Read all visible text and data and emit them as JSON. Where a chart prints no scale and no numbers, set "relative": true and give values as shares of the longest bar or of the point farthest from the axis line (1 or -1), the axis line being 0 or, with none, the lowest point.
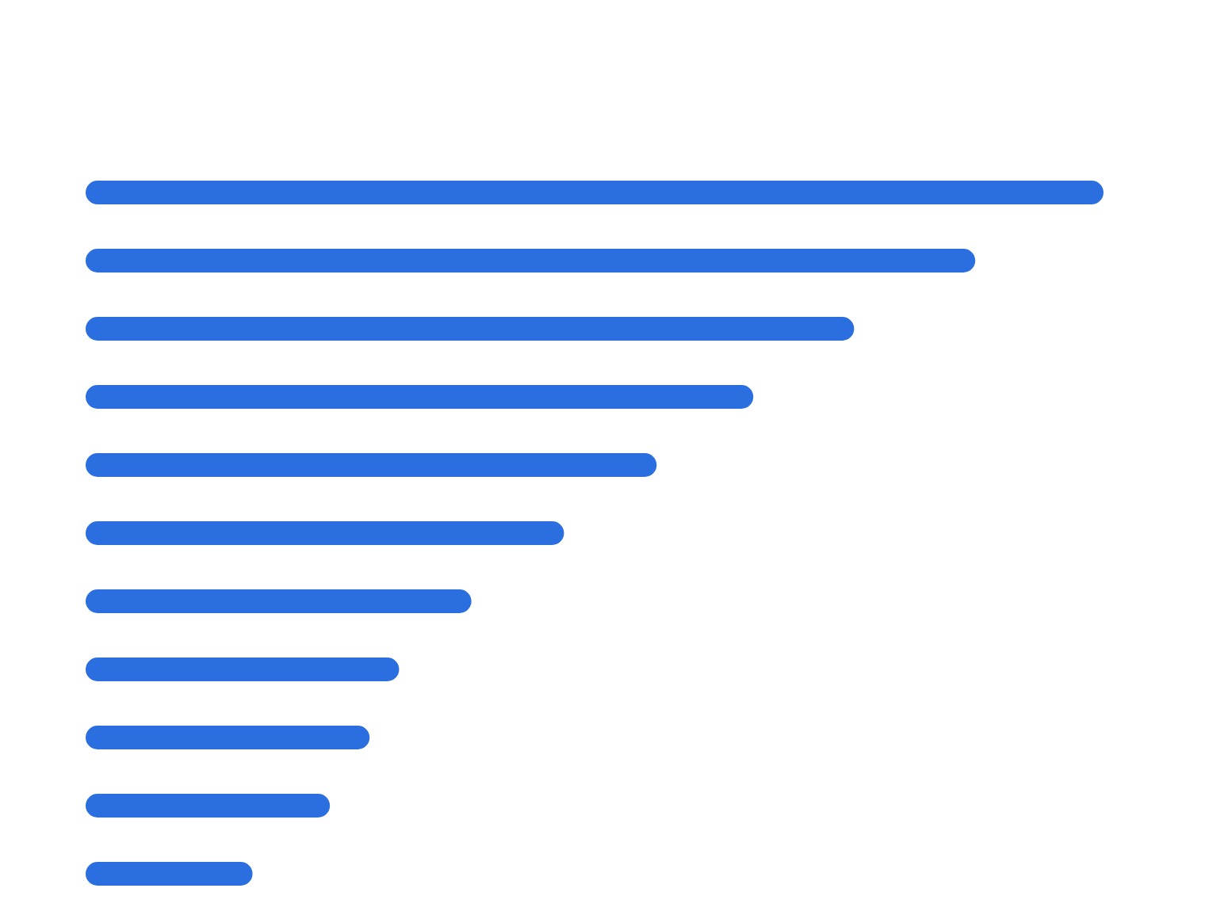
{
  "chart_data": {
    "type": "bar",
    "orientation": "horizontal",
    "relative": true,
    "categories": [
      null,
      null,
      null,
      null,
      null,
      null,
      null,
      null,
      null,
      null,
      null
    ],
    "values": [
      1,
      0.874,
      0.755,
      0.656,
      0.561,
      0.47,
      0.379,
      0.308,
      0.279,
      0.24,
      0.164
    ],
    "color": "#2b6ee0"
  }
}
